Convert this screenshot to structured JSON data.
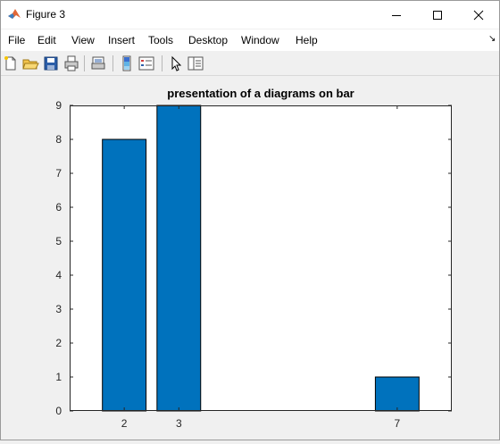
{
  "window": {
    "title": "Figure 3"
  },
  "menu": {
    "items": [
      "File",
      "Edit",
      "View",
      "Insert",
      "Tools",
      "Desktop",
      "Window",
      "Help"
    ]
  },
  "toolbar": {
    "buttons": [
      "new-figure-icon",
      "open-file-icon",
      "save-icon",
      "print-icon",
      "print-preview-icon",
      "colorbar-icon",
      "legend-icon",
      "pointer-icon",
      "property-editor-icon"
    ]
  },
  "colors": {
    "bar": "#0072bd",
    "axes_bg": "#ffffff",
    "figure_bg": "#f0f0f0"
  },
  "chart_data": {
    "type": "bar",
    "title": "presentation of a diagrams on bar",
    "xlabel": "",
    "ylabel": "",
    "x": [
      2,
      3,
      7
    ],
    "values": [
      8,
      9,
      1
    ],
    "xlim": [
      1,
      8
    ],
    "ylim": [
      0,
      9
    ],
    "xticks": [
      "2",
      "3",
      "7"
    ],
    "yticks": [
      "0",
      "1",
      "2",
      "3",
      "4",
      "5",
      "6",
      "7",
      "8",
      "9"
    ],
    "grid": false
  }
}
